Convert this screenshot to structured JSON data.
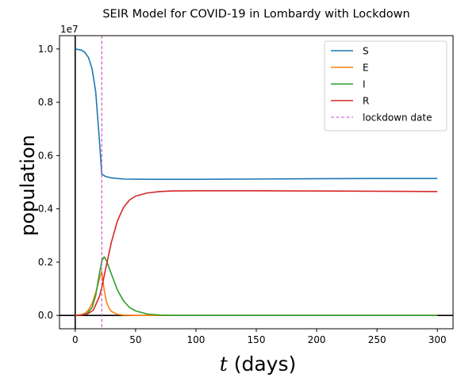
{
  "chart_data": {
    "type": "line",
    "title": "SEIR Model for COVID-19 in Lombardy with Lockdown",
    "xlabel": "t (days)",
    "xlabel_var": "t",
    "xlabel_unit": "(days)",
    "ylabel": "population",
    "y_offset_label": "1e7",
    "xlim": [
      -13,
      313
    ],
    "ylim": [
      -0.5,
      10.5
    ],
    "y_scale_note": "values in units of 1e7 shown as millions",
    "x_ticks": [
      0,
      50,
      100,
      150,
      200,
      250,
      300
    ],
    "y_ticks": [
      0.0,
      0.2,
      0.4,
      0.6,
      0.8,
      1.0
    ],
    "legend_location": "top-right",
    "lockdown_day": 22,
    "series": [
      {
        "name": "S",
        "color": "#1f77b4",
        "x": [
          0,
          5,
          8,
          11,
          14,
          17,
          20,
          22,
          25,
          30,
          40,
          60,
          100,
          150,
          200,
          250,
          300
        ],
        "y": [
          10.0,
          9.96,
          9.87,
          9.68,
          9.25,
          8.4,
          6.6,
          5.3,
          5.22,
          5.16,
          5.12,
          5.11,
          5.11,
          5.12,
          5.13,
          5.14,
          5.14
        ]
      },
      {
        "name": "E",
        "color": "#ff7f0e",
        "x": [
          0,
          5,
          8,
          11,
          14,
          17,
          20,
          22,
          24,
          26,
          28,
          30,
          35,
          40,
          50,
          300
        ],
        "y": [
          0,
          0.03,
          0.08,
          0.2,
          0.45,
          0.85,
          1.35,
          1.65,
          0.95,
          0.5,
          0.27,
          0.15,
          0.04,
          0.01,
          0,
          0
        ]
      },
      {
        "name": "I",
        "color": "#2ca02c",
        "x": [
          0,
          5,
          10,
          14,
          17,
          20,
          22,
          24,
          26,
          30,
          35,
          40,
          45,
          50,
          60,
          70,
          80,
          300
        ],
        "y": [
          0,
          0.01,
          0.08,
          0.3,
          0.75,
          1.55,
          2.05,
          2.2,
          2.05,
          1.55,
          0.95,
          0.55,
          0.3,
          0.17,
          0.05,
          0.015,
          0,
          0
        ]
      },
      {
        "name": "R",
        "color": "#d62728",
        "x": [
          0,
          5,
          10,
          15,
          20,
          22,
          25,
          30,
          35,
          40,
          45,
          50,
          60,
          70,
          80,
          100,
          150,
          200,
          250,
          300
        ],
        "y": [
          0,
          0.01,
          0.05,
          0.2,
          0.7,
          1.05,
          1.7,
          2.75,
          3.55,
          4.05,
          4.33,
          4.48,
          4.6,
          4.65,
          4.67,
          4.68,
          4.68,
          4.67,
          4.66,
          4.65
        ]
      }
    ],
    "vline": {
      "name": "lockdown date",
      "x": 22,
      "color": "#c650c6",
      "style": "dashed"
    }
  }
}
